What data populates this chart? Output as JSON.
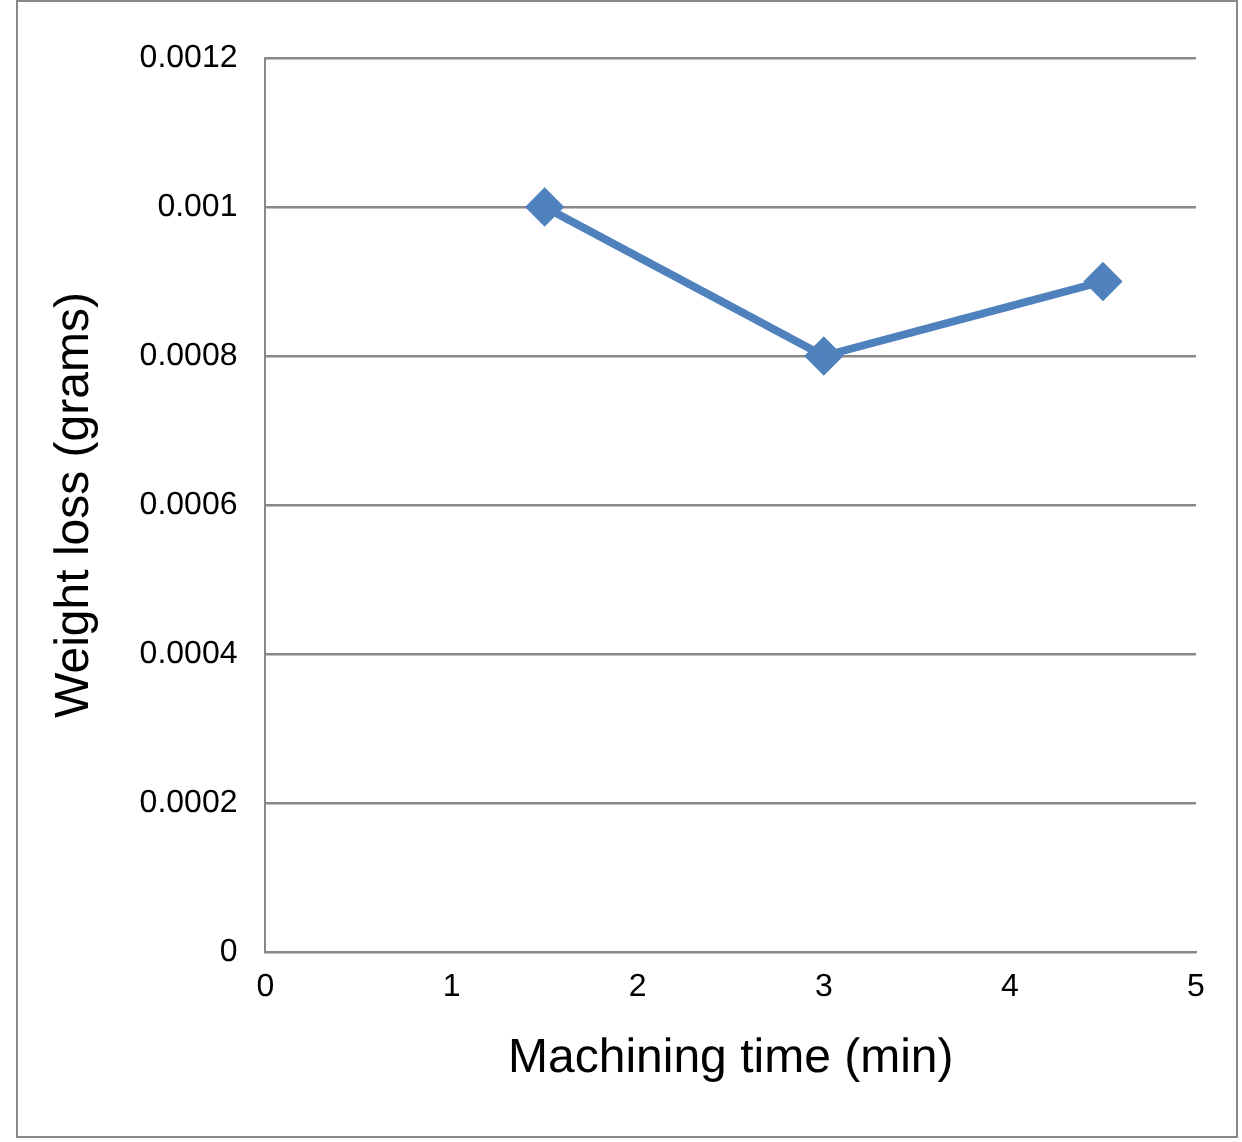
{
  "chart_data": {
    "type": "line",
    "xlabel": "Machining time (min)",
    "ylabel": "Weight loss (grams)",
    "x": [
      1.5,
      3,
      4.5
    ],
    "series": [
      {
        "color": "#4f81bd",
        "values": [
          0.001,
          0.0008,
          0.0009
        ]
      }
    ],
    "xlim": [
      0,
      5
    ],
    "xticks": [
      0,
      1,
      2,
      3,
      4,
      5
    ],
    "ylim": [
      0,
      0.0012
    ],
    "yticks": [
      0,
      0.0002,
      0.0004,
      0.0006,
      0.0008,
      0.001,
      0.0012
    ],
    "grid": "y",
    "legend": false,
    "marker": "diamond",
    "line_style": "solid"
  }
}
